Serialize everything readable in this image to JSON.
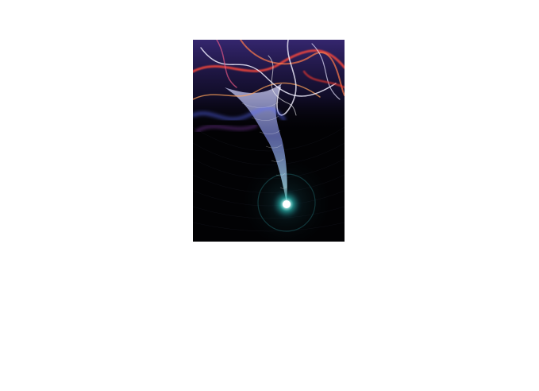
{
  "image": {
    "subject": "abstract-light-vortex-artwork",
    "colors": {
      "background": "#020204",
      "glow_core": "#e9fffb",
      "glow_teal": "#2ec9c2",
      "ribbon_red": "#ff4a3a",
      "ribbon_orange": "#ffa35a",
      "ribbon_blue": "#5b6cff",
      "ribbon_purple": "#a24bd6",
      "ribbon_white": "#f2f0ff"
    }
  }
}
